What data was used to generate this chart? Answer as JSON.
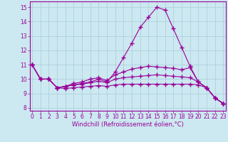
{
  "xlabel": "Windchill (Refroidissement éolien,°C)",
  "background_color": "#cce8f0",
  "grid_color": "#aaccdd",
  "line_color": "#990099",
  "x_ticks": [
    0,
    1,
    2,
    3,
    4,
    5,
    6,
    7,
    8,
    9,
    10,
    11,
    12,
    13,
    14,
    15,
    16,
    17,
    18,
    19,
    20,
    21,
    22,
    23
  ],
  "ylim": [
    7.8,
    15.4
  ],
  "xlim": [
    -0.3,
    23.3
  ],
  "yticks": [
    8,
    9,
    10,
    11,
    12,
    13,
    14,
    15
  ],
  "lines": [
    [
      11.0,
      10.0,
      10.0,
      9.4,
      9.5,
      9.6,
      9.7,
      9.8,
      10.0,
      9.8,
      10.5,
      11.5,
      12.5,
      13.6,
      14.3,
      15.0,
      14.8,
      13.5,
      12.2,
      10.9,
      9.8,
      9.4,
      8.7,
      8.3
    ],
    [
      11.0,
      10.0,
      10.0,
      9.4,
      9.5,
      9.7,
      9.8,
      10.0,
      10.1,
      9.9,
      10.3,
      10.5,
      10.7,
      10.8,
      10.9,
      10.85,
      10.8,
      10.75,
      10.65,
      10.8,
      9.8,
      9.4,
      8.7,
      8.3
    ],
    [
      11.0,
      10.0,
      10.0,
      9.4,
      9.5,
      9.6,
      9.65,
      9.75,
      9.85,
      9.75,
      10.0,
      10.1,
      10.15,
      10.2,
      10.25,
      10.3,
      10.25,
      10.2,
      10.15,
      10.1,
      9.8,
      9.4,
      8.7,
      8.3
    ],
    [
      11.0,
      10.0,
      10.0,
      9.4,
      9.35,
      9.4,
      9.45,
      9.5,
      9.55,
      9.5,
      9.6,
      9.65,
      9.65,
      9.65,
      9.65,
      9.65,
      9.65,
      9.65,
      9.65,
      9.65,
      9.6,
      9.4,
      8.7,
      8.3
    ]
  ],
  "tick_fontsize": 5.5,
  "xlabel_fontsize": 6
}
